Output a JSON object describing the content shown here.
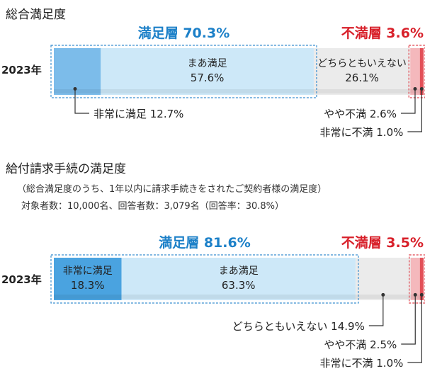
{
  "chart_data": [
    {
      "type": "bar",
      "orientation": "horizontal-stacked",
      "title": "総合満足度",
      "category": "2023年",
      "unit": "%",
      "groups": [
        {
          "label": "満足層 70.3%",
          "kind": "satisfied",
          "segments": [
            "非常に満足",
            "まあ満足"
          ]
        },
        {
          "label": "不満層 3.6%",
          "kind": "dissatisfied",
          "segments": [
            "やや不満",
            "非常に不満"
          ]
        }
      ],
      "series": [
        {
          "name": "非常に満足",
          "value": 12.7,
          "label": "非常に満足 12.7%",
          "color": "#7cbcea",
          "display": "callout"
        },
        {
          "name": "まあ満足",
          "value": 57.6,
          "label": "まあ満足\n57.6%",
          "color": "#cde8f8",
          "display": "inside"
        },
        {
          "name": "どちらともいえない",
          "value": 26.1,
          "label": "どちらともいえない\n26.1%",
          "color": "#ebebeb",
          "display": "inside"
        },
        {
          "name": "やや不満",
          "value": 2.6,
          "label": "やや不満 2.6%",
          "color": "#f4b8bc",
          "display": "callout"
        },
        {
          "name": "非常に不満",
          "value": 1.0,
          "label": "非常に不満 1.0%",
          "color": "#e35058",
          "display": "callout"
        }
      ]
    },
    {
      "type": "bar",
      "orientation": "horizontal-stacked",
      "title": "給付請求手続の満足度",
      "notes": [
        "（総合満足度のうち、1年以内に請求手続きをされたご契約者様の満足度）",
        "対象者数：10,000名、回答者数：3,079名（回答率：30.8%）"
      ],
      "category": "2023年",
      "unit": "%",
      "groups": [
        {
          "label": "満足層 81.6%",
          "kind": "satisfied",
          "segments": [
            "非常に満足",
            "まあ満足"
          ]
        },
        {
          "label": "不満層 3.5%",
          "kind": "dissatisfied",
          "segments": [
            "やや不満",
            "非常に不満"
          ]
        }
      ],
      "series": [
        {
          "name": "非常に満足",
          "value": 18.3,
          "label": "非常に満足\n18.3%",
          "color": "#4aa3e0",
          "display": "inside"
        },
        {
          "name": "まあ満足",
          "value": 63.3,
          "label": "まあ満足\n63.3%",
          "color": "#cde8f8",
          "display": "inside"
        },
        {
          "name": "どちらともいえない",
          "value": 14.9,
          "label": "どちらともいえない 14.9%",
          "color": "#ebebeb",
          "display": "callout"
        },
        {
          "name": "やや不満",
          "value": 2.5,
          "label": "やや不満 2.5%",
          "color": "#f4b8bc",
          "display": "callout"
        },
        {
          "name": "非常に不満",
          "value": 1.0,
          "label": "非常に不満 1.0%",
          "color": "#e35058",
          "display": "callout"
        }
      ]
    }
  ],
  "colors": {
    "satisfied_text": "#1c80c8",
    "dissatisfied_text": "#d8202a",
    "satisfied_frame": "#3a8fd0",
    "dissatisfied_frame": "#e0404a",
    "leader": "#333333"
  }
}
